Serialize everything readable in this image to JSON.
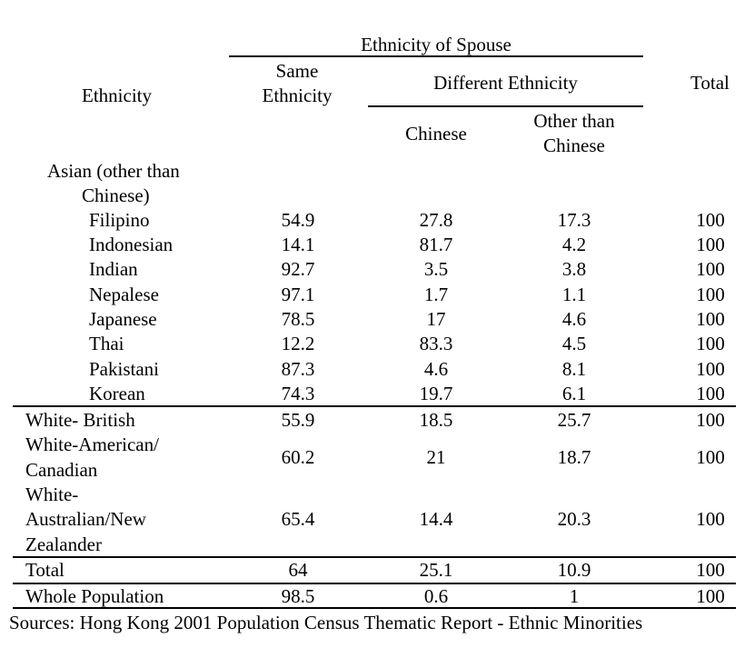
{
  "header": {
    "ethnicity_of_spouse": "Ethnicity of Spouse",
    "ethnicity": "Ethnicity",
    "same_ethnicity_1": "Same",
    "same_ethnicity_2": "Ethnicity",
    "different_ethnicity": "Different Ethnicity",
    "total": "Total",
    "chinese": "Chinese",
    "other_1": "Other than",
    "other_2": "Chinese"
  },
  "group_asian": {
    "label_1": "Asian (other than",
    "label_2": "Chinese)"
  },
  "asian_rows": [
    {
      "name": "Filipino",
      "same": "54.9",
      "chinese": "27.8",
      "other": "17.3",
      "total": "100"
    },
    {
      "name": "Indonesian",
      "same": "14.1",
      "chinese": "81.7",
      "other": "4.2",
      "total": "100"
    },
    {
      "name": "Indian",
      "same": "92.7",
      "chinese": "3.5",
      "other": "3.8",
      "total": "100"
    },
    {
      "name": "Nepalese",
      "same": "97.1",
      "chinese": "1.7",
      "other": "1.1",
      "total": "100"
    },
    {
      "name": "Japanese",
      "same": "78.5",
      "chinese": "17",
      "other": "4.6",
      "total": "100"
    },
    {
      "name": "Thai",
      "same": "12.2",
      "chinese": "83.3",
      "other": "4.5",
      "total": "100"
    },
    {
      "name": "Pakistani",
      "same": "87.3",
      "chinese": "4.6",
      "other": "8.1",
      "total": "100"
    },
    {
      "name": "Korean",
      "same": "74.3",
      "chinese": "19.7",
      "other": "6.1",
      "total": "100"
    }
  ],
  "white_british": {
    "name": "White- British",
    "same": "55.9",
    "chinese": "18.5",
    "other": "25.7",
    "total": "100"
  },
  "white_american": {
    "name_1": "White-American/",
    "name_2": "Canadian",
    "same": "60.2",
    "chinese": "21",
    "other": "18.7",
    "total": "100"
  },
  "white_australian": {
    "name_1": "White-",
    "name_2": "Australian/New",
    "name_3": "Zealander",
    "same": "65.4",
    "chinese": "14.4",
    "other": "20.3",
    "total": "100"
  },
  "total_row": {
    "name": "Total",
    "same": "64",
    "chinese": "25.1",
    "other": "10.9",
    "total": "100"
  },
  "whole_population": {
    "name": "Whole Population",
    "same": "98.5",
    "chinese": "0.6",
    "other": "1",
    "total": "100"
  },
  "source": "Sources: Hong Kong 2001 Population Census Thematic Report - Ethnic Minorities"
}
